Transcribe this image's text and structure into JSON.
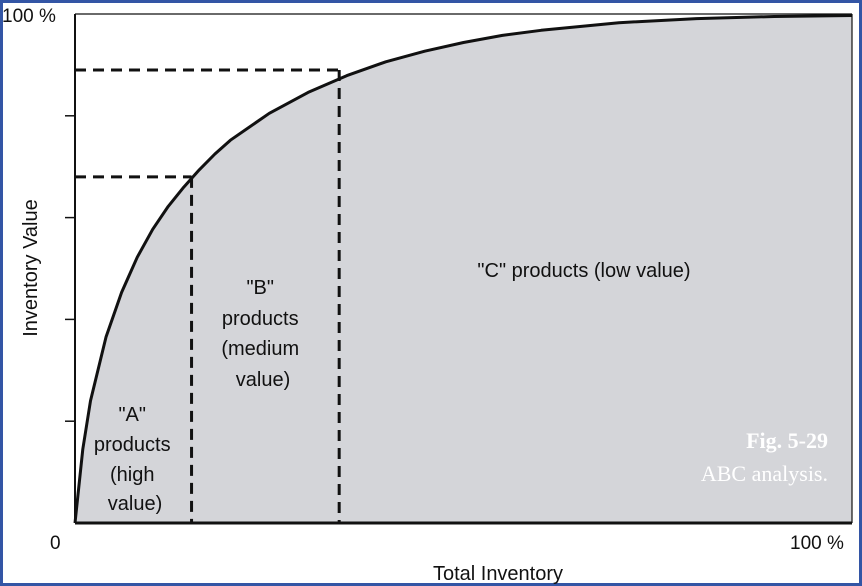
{
  "chart_data": {
    "type": "area",
    "title": "",
    "xlabel": "Total Inventory",
    "ylabel": "Inventory Value",
    "x_tick_labels": {
      "min": "0",
      "max": "100 %"
    },
    "y_tick_labels": {
      "max": "100 %"
    },
    "xlim": [
      0,
      100
    ],
    "ylim": [
      0,
      100
    ],
    "grid": false,
    "series": [
      {
        "x": [
          0,
          1,
          2,
          4,
          6,
          8,
          10,
          12,
          14,
          16,
          18,
          20,
          25,
          30,
          35,
          40,
          45,
          50,
          55,
          60,
          70,
          80,
          90,
          100
        ],
        "y": [
          0,
          14.5,
          24.0,
          36.6,
          45.3,
          52.2,
          57.7,
          62.2,
          66.0,
          69.4,
          72.5,
          75.2,
          80.5,
          84.6,
          87.9,
          90.6,
          92.7,
          94.4,
          95.8,
          96.8,
          98.3,
          99.1,
          99.5,
          99.7
        ]
      }
    ],
    "fill_color": "#d4d5d9",
    "line_color": "#111111",
    "boundaries": [
      {
        "x": 15,
        "y": 68
      },
      {
        "x": 34,
        "y": 89
      }
    ],
    "regions": [
      {
        "lines": [
          "\"A\"",
          "products",
          "(high",
          "value)"
        ]
      },
      {
        "lines": [
          "\"B\"",
          "products",
          "(medium",
          "value)"
        ]
      },
      {
        "lines": [
          "\"C\" products (low value)"
        ]
      }
    ]
  },
  "caption": {
    "number": "Fig. 5-29",
    "text": "ABC analysis."
  },
  "colors": {
    "frame": "#3355a5",
    "caption": "#ffffff"
  }
}
